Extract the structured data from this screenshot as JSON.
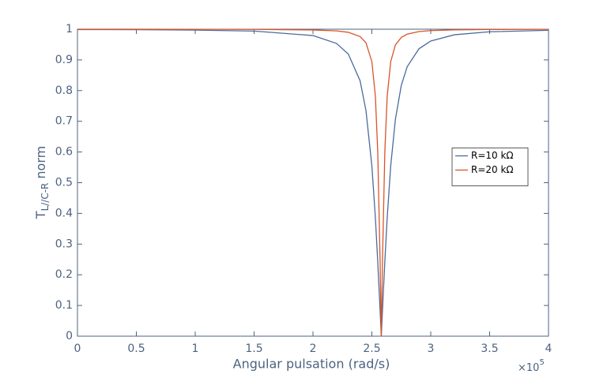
{
  "chart_data": {
    "type": "line",
    "xlabel": "Angular pulsation (rad/s)",
    "ylabel": {
      "main": "T",
      "subscript": "L//C-R",
      "suffix": "norm"
    },
    "x_multiplier": {
      "base": "×10",
      "exponent": "5"
    },
    "x": [
      0,
      0.5,
      1,
      1.5,
      2,
      2.2,
      2.3,
      2.4,
      2.45,
      2.5,
      2.53,
      2.55,
      2.57,
      2.58,
      2.59,
      2.61,
      2.63,
      2.66,
      2.7,
      2.75,
      2.8,
      2.9,
      3,
      3.2,
      3.5,
      4
    ],
    "series": [
      {
        "name": "R=10 kΩ",
        "color": "#4a6b9c",
        "values": [
          0.9989,
          0.9983,
          0.9971,
          0.9939,
          0.9793,
          0.9536,
          0.9191,
          0.8321,
          0.7348,
          0.5547,
          0.3846,
          0.2425,
          0.083,
          0,
          0.083,
          0.2425,
          0.3846,
          0.5547,
          0.7071,
          0.817,
          0.8779,
          0.9363,
          0.9615,
          0.9818,
          0.9916,
          0.9964
        ]
      },
      {
        "name": "R=20 kΩ",
        "color": "#d9542a",
        "values": [
          0.9999,
          0.9998,
          0.9997,
          0.9993,
          0.9976,
          0.9945,
          0.9899,
          0.9762,
          0.9558,
          0.8944,
          0.7809,
          0.6,
          0.2425,
          0,
          0.2425,
          0.6,
          0.7809,
          0.8944,
          0.9487,
          0.9734,
          0.9839,
          0.9923,
          0.9955,
          0.9979,
          0.9991,
          0.9996
        ]
      }
    ],
    "xlim": [
      0,
      4
    ],
    "xticks": [
      0,
      0.5,
      1,
      1.5,
      2,
      2.5,
      3,
      3.5,
      4
    ],
    "ylim": [
      0,
      1
    ],
    "yticks": [
      0,
      0.1,
      0.2,
      0.3,
      0.4,
      0.5,
      0.6,
      0.7,
      0.8,
      0.9,
      1
    ],
    "grid": false,
    "legend_position": "east"
  }
}
